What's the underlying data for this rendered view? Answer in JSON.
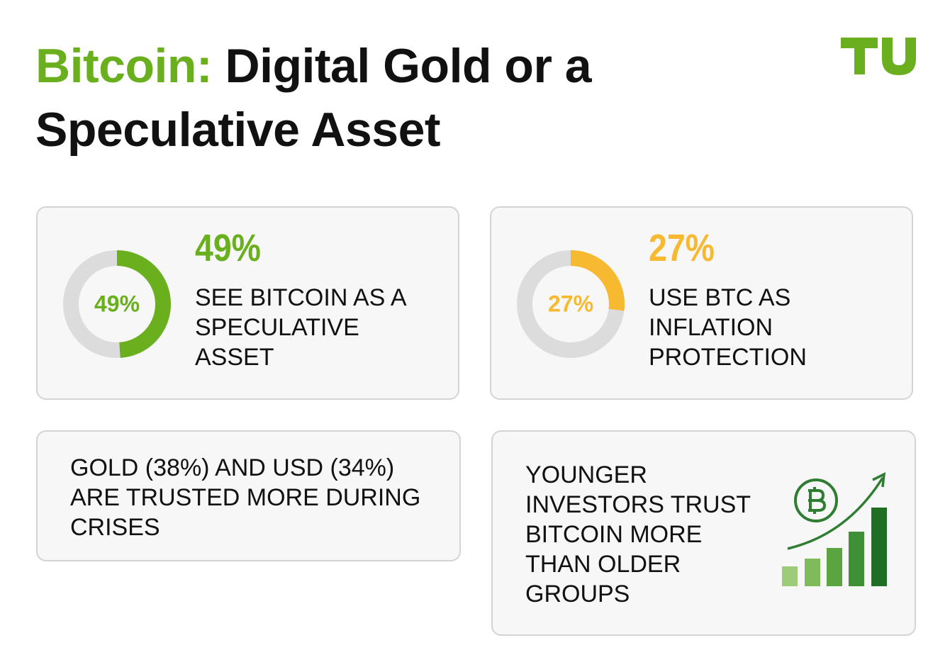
{
  "title": {
    "highlight": "Bitcoin:",
    "rest": "Digital Gold or a Speculative Asset"
  },
  "cards": [
    {
      "value": 49,
      "value_label": "49%",
      "text": "SEE BITCOIN AS A SPECULATIVE ASSET",
      "color": "#6aaf1e"
    },
    {
      "value": 27,
      "value_label": "27%",
      "text": "USE BTC AS INFLATION PROTECTION",
      "color": "#f6b92f"
    }
  ],
  "notes": [
    "GOLD (38%) AND USD (34%) ARE TRUSTED MORE DURING CRISES",
    "YOUNGER INVESTORS TRUST BITCOIN MORE THAN OLDER GROUPS"
  ]
}
